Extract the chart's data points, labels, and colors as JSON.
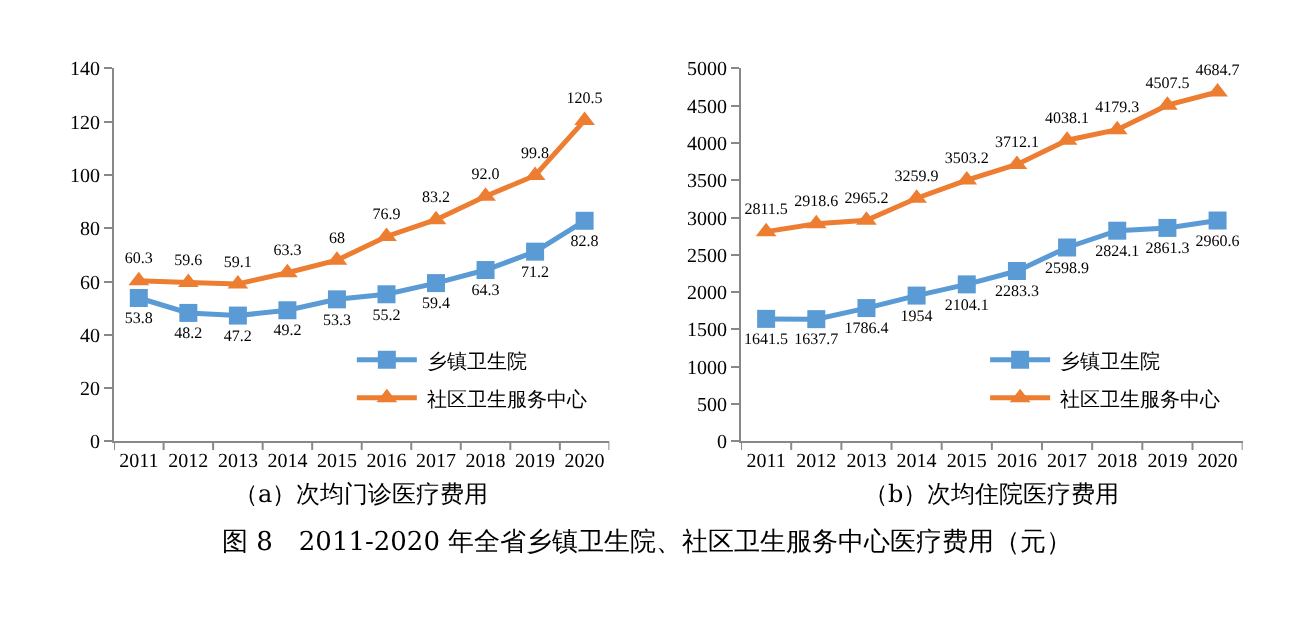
{
  "chart_data": [
    {
      "type": "line",
      "xlabel": "（a）次均门诊医疗费用",
      "categories": [
        "2011",
        "2012",
        "2013",
        "2014",
        "2015",
        "2016",
        "2017",
        "2018",
        "2019",
        "2020"
      ],
      "ylim": [
        0,
        140
      ],
      "yticks": [
        0,
        20,
        40,
        60,
        80,
        100,
        120,
        140
      ],
      "grid": false,
      "legend": "bottom right",
      "series": [
        {
          "name": "乡镇卫生院",
          "color": "#5b9bd5",
          "marker": "square",
          "values": [
            53.8,
            48.2,
            47.2,
            49.2,
            53.3,
            55.2,
            59.4,
            64.3,
            71.2,
            82.8
          ],
          "value_labels": [
            "53.8",
            "48.2",
            "47.2",
            "49.2",
            "53.3",
            "55.2",
            "59.4",
            "64.3",
            "71.2",
            "82.8"
          ]
        },
        {
          "name": "社区卫生服务中心",
          "color": "#ed7d31",
          "marker": "triangle",
          "values": [
            60.3,
            59.6,
            59.1,
            63.3,
            68,
            76.9,
            83.2,
            92.0,
            99.8,
            120.5
          ],
          "value_labels": [
            "60.3",
            "59.6",
            "59.1",
            "63.3",
            "68",
            "76.9",
            "83.2",
            "92.0",
            "99.8",
            "120.5"
          ]
        }
      ],
      "annotations": [
        "图 8　2011-2020 年全省乡镇卫生院、社区卫生服务中心医疗费用（元）"
      ]
    },
    {
      "type": "line",
      "xlabel": "（b）次均住院医疗费用",
      "categories": [
        "2011",
        "2012",
        "2013",
        "2014",
        "2015",
        "2016",
        "2017",
        "2018",
        "2019",
        "2020"
      ],
      "ylim": [
        0,
        5000
      ],
      "yticks": [
        0,
        500,
        1000,
        1500,
        2000,
        2500,
        3000,
        3500,
        4000,
        4500,
        5000
      ],
      "grid": false,
      "legend": "bottom right",
      "series": [
        {
          "name": "乡镇卫生院",
          "color": "#5b9bd5",
          "marker": "square",
          "values": [
            1641.5,
            1637.7,
            1786.4,
            1954,
            2104.1,
            2283.3,
            2598.9,
            2824.1,
            2861.3,
            2960.6
          ],
          "value_labels": [
            "1641.5",
            "1637.7",
            "1786.4",
            "1954",
            "2104.1",
            "2283.3",
            "2598.9",
            "2824.1",
            "2861.3",
            "2960.6"
          ]
        },
        {
          "name": "社区卫生服务中心",
          "color": "#ed7d31",
          "marker": "triangle",
          "values": [
            2811.5,
            2918.6,
            2965.2,
            3259.9,
            3503.2,
            3712.1,
            4038.1,
            4179.3,
            4507.5,
            4684.7
          ],
          "value_labels": [
            "2811.5",
            "2918.6",
            "2965.2",
            "3259.9",
            "3503.2",
            "3712.1",
            "4038.1",
            "4179.3",
            "4507.5",
            "4684.7"
          ]
        }
      ]
    }
  ]
}
